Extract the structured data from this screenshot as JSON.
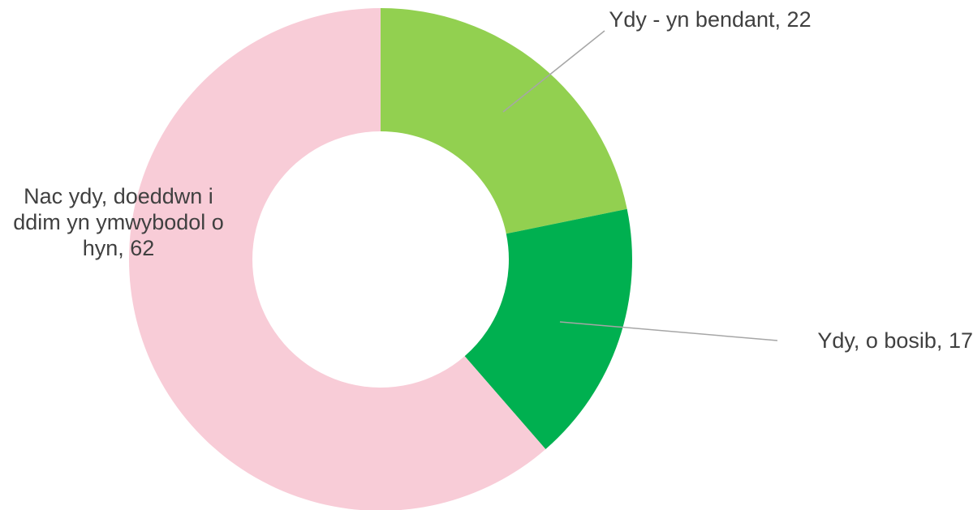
{
  "chart_data": {
    "type": "donut",
    "categories": [
      "Ydy - yn bendant,",
      "Ydy, o bosib,",
      "Nac ydy, doeddwn i ddim yn ymwybodol o hyn,"
    ],
    "values": [
      22,
      17,
      62
    ],
    "colors": [
      "#92d050",
      "#00b050",
      "#f8ccd7"
    ]
  }
}
